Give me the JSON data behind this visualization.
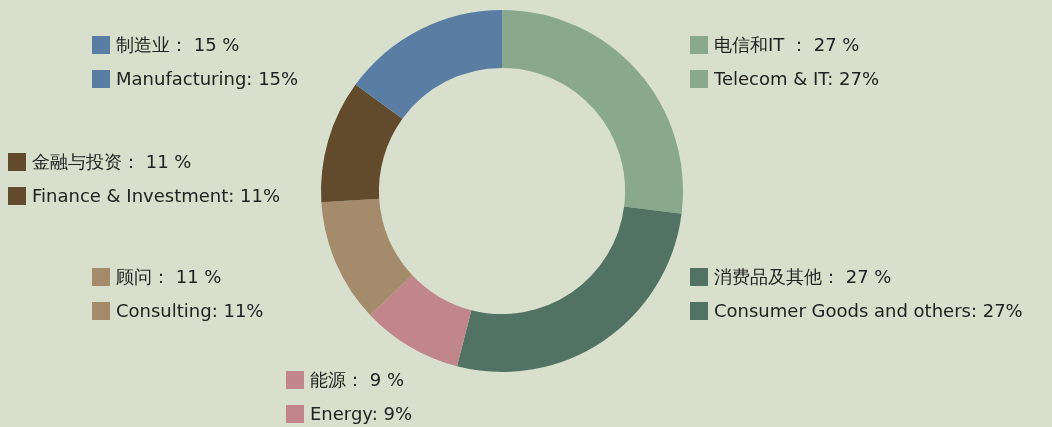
{
  "chart_data": {
    "type": "donut",
    "categories": [
      "Telecom & IT",
      "Consumer Goods and others",
      "Energy",
      "Consulting",
      "Finance & Investment",
      "Manufacturing"
    ],
    "values": [
      27,
      27,
      9,
      11,
      11,
      15
    ],
    "value_labels": [
      "27%",
      "27%",
      "9%",
      "11%",
      "11%",
      "15%"
    ],
    "annotations": [
      "电信和IT ： 27 %",
      "消费品及其他： 27 %",
      "能源： 9 %",
      "顾问： 11 %",
      "金融与投资： 11 %",
      "制造业： 15 %"
    ],
    "colors": [
      "#8aa88e",
      "#527364",
      "#c0868c",
      "#a38b6b",
      "#614b2c",
      "#5a7ea3"
    ],
    "legend": "right"
  }
}
